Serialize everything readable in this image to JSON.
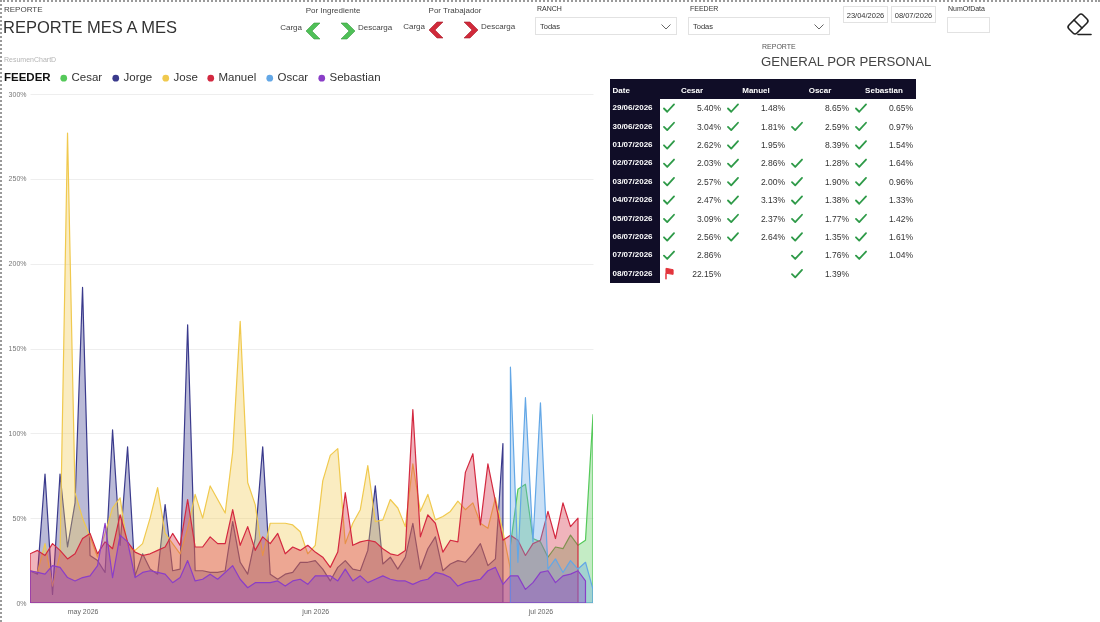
{
  "chart_data": [
    {
      "type": "area",
      "title": "REPORTE MES A MES",
      "subtitle": "REPORTE",
      "annotations": [
        "ResumenChartD",
        "Por Ingrediente",
        "Carga",
        "Descarga",
        "Por Trabajador",
        "Carga",
        "Descarga",
        "RANCH",
        "Todas",
        "FEEDER",
        "Todas",
        "23/04/2026",
        "08/07/2026",
        "NumOfData"
      ],
      "legend_title": "FEEDER",
      "legend": "top left",
      "grid": "y",
      "x": [
        "2026-04-24",
        "2026-04-25",
        "2026-04-26",
        "2026-04-27",
        "2026-04-28",
        "2026-04-29",
        "2026-04-30",
        "2026-05-01",
        "2026-05-02",
        "2026-05-03",
        "2026-05-04",
        "2026-05-05",
        "2026-05-06",
        "2026-05-07",
        "2026-05-08",
        "2026-05-09",
        "2026-05-10",
        "2026-05-11",
        "2026-05-12",
        "2026-05-13",
        "2026-05-14",
        "2026-05-15",
        "2026-05-16",
        "2026-05-17",
        "2026-05-18",
        "2026-05-19",
        "2026-05-20",
        "2026-05-21",
        "2026-05-22",
        "2026-05-23",
        "2026-05-24",
        "2026-05-25",
        "2026-05-26",
        "2026-05-27",
        "2026-05-28",
        "2026-05-29",
        "2026-05-30",
        "2026-05-31",
        "2026-06-01",
        "2026-06-02",
        "2026-06-03",
        "2026-06-04",
        "2026-06-05",
        "2026-06-06",
        "2026-06-07",
        "2026-06-08",
        "2026-06-09",
        "2026-06-10",
        "2026-06-11",
        "2026-06-12",
        "2026-06-13",
        "2026-06-14",
        "2026-06-15",
        "2026-06-16",
        "2026-06-17",
        "2026-06-18",
        "2026-06-19",
        "2026-06-20",
        "2026-06-21",
        "2026-06-22",
        "2026-06-23",
        "2026-06-24",
        "2026-06-25",
        "2026-06-26",
        "2026-06-27",
        "2026-06-28",
        "2026-06-29",
        "2026-06-30",
        "2026-07-01",
        "2026-07-02",
        "2026-07-03",
        "2026-07-04",
        "2026-07-05",
        "2026-07-06",
        "2026-07-07",
        "2026-07-08"
      ],
      "xlim": [
        "2026-04-24",
        "2026-07-08"
      ],
      "xticks": [
        {
          "value": "2026-05-01",
          "label": "may 2026"
        },
        {
          "value": "2026-06-01",
          "label": "jun 2026"
        },
        {
          "value": "2026-07-01",
          "label": "jul 2026"
        }
      ],
      "ylim": [
        0,
        300
      ],
      "yticks": [
        {
          "value": 0,
          "label": "0%"
        },
        {
          "value": 50,
          "label": "50%"
        },
        {
          "value": 100,
          "label": "100%"
        },
        {
          "value": 150,
          "label": "150%"
        },
        {
          "value": 200,
          "label": "200%"
        },
        {
          "value": 250,
          "label": "250%"
        },
        {
          "value": 300,
          "label": "300%"
        }
      ],
      "series": [
        {
          "name": "Cesar",
          "color": "#55c95a",
          "values": [
            null,
            null,
            null,
            null,
            null,
            null,
            null,
            null,
            null,
            null,
            null,
            null,
            null,
            null,
            null,
            null,
            null,
            null,
            null,
            null,
            null,
            null,
            null,
            null,
            null,
            null,
            null,
            null,
            null,
            null,
            null,
            null,
            null,
            null,
            null,
            null,
            null,
            null,
            null,
            null,
            null,
            null,
            null,
            null,
            null,
            null,
            null,
            null,
            null,
            null,
            null,
            null,
            null,
            null,
            null,
            null,
            null,
            null,
            null,
            null,
            null,
            null,
            null,
            null,
            34,
            67,
            70,
            38,
            36,
            27,
            33,
            32,
            40,
            34,
            37,
            111
          ]
        },
        {
          "name": "Jorge",
          "color": "#3a3a8c",
          "values": [
            19,
            17,
            76,
            5,
            76,
            33,
            59,
            186,
            28,
            25,
            18,
            102,
            34,
            92,
            16,
            29,
            20,
            17,
            58,
            19,
            20,
            164,
            19,
            19,
            18,
            18,
            19,
            48,
            24,
            17,
            38,
            92,
            17,
            14,
            17,
            18,
            24,
            24,
            25,
            20,
            13,
            21,
            25,
            20,
            19,
            31,
            69,
            23,
            27,
            20,
            27,
            47,
            20,
            32,
            39,
            19,
            23,
            25,
            24,
            29,
            35,
            22,
            26,
            94,
            null,
            null,
            null,
            null,
            null,
            null,
            null,
            null,
            null,
            null,
            null,
            null
          ]
        },
        {
          "name": "Jose",
          "color": "#f0c94e",
          "values": [
            19,
            18,
            35,
            10,
            29,
            277,
            65,
            50,
            39,
            27,
            41,
            56,
            62,
            33,
            31,
            35,
            50,
            68,
            41,
            35,
            29,
            44,
            64,
            50,
            69,
            61,
            53,
            89,
            166,
            71,
            58,
            28,
            47,
            47,
            47,
            46,
            42,
            29,
            34,
            72,
            87,
            91,
            35,
            47,
            55,
            81,
            48,
            49,
            61,
            56,
            45,
            82,
            54,
            64,
            49,
            51,
            54,
            60,
            55,
            59,
            47,
            44,
            62,
            42,
            20,
            null,
            null,
            null,
            null,
            null,
            null,
            null,
            null,
            null,
            null,
            null
          ]
        },
        {
          "name": "Manuel",
          "color": "#d32940",
          "values": [
            29,
            31,
            28,
            35,
            31,
            26,
            29,
            38,
            41,
            29,
            36,
            32,
            52,
            36,
            30,
            28,
            29,
            31,
            33,
            41,
            34,
            61,
            33,
            33,
            39,
            35,
            35,
            55,
            34,
            45,
            31,
            39,
            35,
            41,
            29,
            33,
            31,
            34,
            30,
            27,
            21,
            30,
            65,
            34,
            36,
            37,
            36,
            32,
            29,
            28,
            31,
            114,
            39,
            52,
            47,
            30,
            37,
            36,
            77,
            88,
            46,
            82,
            60,
            37,
            40,
            37,
            28,
            35,
            37,
            54,
            38,
            59,
            45,
            50,
            null,
            null
          ]
        },
        {
          "name": "Oscar",
          "color": "#63a7e6",
          "values": [
            null,
            null,
            null,
            null,
            null,
            null,
            null,
            null,
            null,
            null,
            null,
            null,
            null,
            null,
            null,
            null,
            null,
            null,
            null,
            null,
            null,
            null,
            null,
            null,
            null,
            null,
            null,
            null,
            null,
            null,
            null,
            null,
            null,
            null,
            null,
            null,
            null,
            null,
            null,
            null,
            null,
            null,
            null,
            null,
            null,
            null,
            null,
            null,
            null,
            null,
            null,
            null,
            null,
            null,
            null,
            null,
            null,
            null,
            null,
            null,
            null,
            null,
            null,
            null,
            139,
            24,
            121,
            36,
            118,
            20,
            26,
            18,
            25,
            20,
            24,
            8
          ]
        },
        {
          "name": "Sebastian",
          "color": "#8a3ec8",
          "values": [
            19,
            18,
            17,
            22,
            21,
            15,
            13,
            15,
            16,
            22,
            47,
            15,
            40,
            36,
            15,
            18,
            19,
            18,
            17,
            12,
            15,
            25,
            13,
            14,
            17,
            14,
            18,
            22,
            14,
            9,
            12,
            12,
            12,
            13,
            10,
            13,
            14,
            11,
            16,
            16,
            16,
            13,
            20,
            13,
            16,
            12,
            14,
            16,
            14,
            13,
            13,
            11,
            13,
            14,
            18,
            17,
            15,
            10,
            12,
            13,
            14,
            19,
            21,
            11,
            16,
            16,
            8,
            12,
            18,
            19,
            12,
            16,
            17,
            19,
            13,
            null
          ]
        }
      ]
    },
    {
      "type": "heatmap",
      "title": "GENERAL POR PERSONAL",
      "subtitle": "REPORTE",
      "ylabel": "Date",
      "categories": [
        "Cesar",
        "Manuel",
        "Oscar",
        "Sebastian"
      ],
      "y_categories": [
        "29/06/2026",
        "30/06/2026",
        "01/07/2026",
        "02/07/2026",
        "03/07/2026",
        "04/07/2026",
        "05/07/2026",
        "06/07/2026",
        "07/07/2026",
        "08/07/2026"
      ],
      "cells": [
        [
          5.4,
          1.48,
          8.65,
          0.65
        ],
        [
          3.04,
          1.81,
          2.59,
          0.97
        ],
        [
          2.62,
          1.95,
          8.39,
          1.54
        ],
        [
          2.03,
          2.86,
          1.28,
          1.64
        ],
        [
          2.57,
          2.0,
          1.9,
          0.96
        ],
        [
          2.47,
          3.13,
          1.38,
          1.33
        ],
        [
          3.09,
          2.37,
          1.77,
          1.42
        ],
        [
          2.56,
          2.64,
          1.35,
          1.61
        ],
        [
          2.86,
          null,
          1.76,
          1.04
        ],
        [
          22.15,
          null,
          1.39,
          null
        ]
      ],
      "cell_labels": [
        [
          "5.40%",
          "1.48%",
          "8.65%",
          "0.65%"
        ],
        [
          "3.04%",
          "1.81%",
          "2.59%",
          "0.97%"
        ],
        [
          "2.62%",
          "1.95%",
          "8.39%",
          "1.54%"
        ],
        [
          "2.03%",
          "2.86%",
          "1.28%",
          "1.64%"
        ],
        [
          "2.57%",
          "2.00%",
          "1.90%",
          "0.96%"
        ],
        [
          "2.47%",
          "3.13%",
          "1.38%",
          "1.33%"
        ],
        [
          "3.09%",
          "2.37%",
          "1.77%",
          "1.42%"
        ],
        [
          "2.56%",
          "2.64%",
          "1.35%",
          "1.61%"
        ],
        [
          "2.86%",
          null,
          "1.76%",
          "1.04%"
        ],
        [
          "22.15%",
          null,
          "1.39%",
          null
        ]
      ]
    }
  ]
}
